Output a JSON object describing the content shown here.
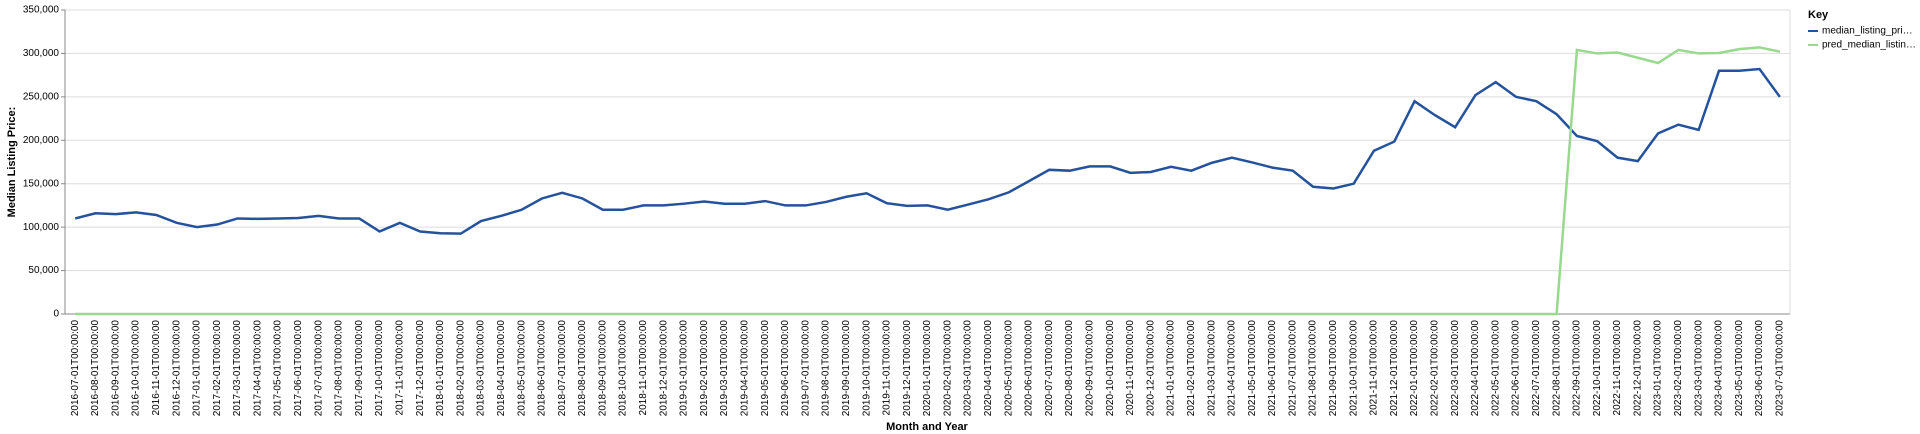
{
  "chart_data": {
    "type": "line",
    "x_label": "Month and Year",
    "y_label": "Median Listing Price:",
    "legend_title": "Key",
    "legend_position": "right",
    "grid": true,
    "categories": [
      "2016-07-01T00:00:00",
      "2016-08-01T00:00:00",
      "2016-09-01T00:00:00",
      "2016-10-01T00:00:00",
      "2016-11-01T00:00:00",
      "2016-12-01T00:00:00",
      "2017-01-01T00:00:00",
      "2017-02-01T00:00:00",
      "2017-03-01T00:00:00",
      "2017-04-01T00:00:00",
      "2017-05-01T00:00:00",
      "2017-06-01T00:00:00",
      "2017-07-01T00:00:00",
      "2017-08-01T00:00:00",
      "2017-09-01T00:00:00",
      "2017-10-01T00:00:00",
      "2017-11-01T00:00:00",
      "2017-12-01T00:00:00",
      "2018-01-01T00:00:00",
      "2018-02-01T00:00:00",
      "2018-03-01T00:00:00",
      "2018-04-01T00:00:00",
      "2018-05-01T00:00:00",
      "2018-06-01T00:00:00",
      "2018-07-01T00:00:00",
      "2018-08-01T00:00:00",
      "2018-09-01T00:00:00",
      "2018-10-01T00:00:00",
      "2018-11-01T00:00:00",
      "2018-12-01T00:00:00",
      "2019-01-01T00:00:00",
      "2019-02-01T00:00:00",
      "2019-03-01T00:00:00",
      "2019-04-01T00:00:00",
      "2019-05-01T00:00:00",
      "2019-06-01T00:00:00",
      "2019-07-01T00:00:00",
      "2019-08-01T00:00:00",
      "2019-09-01T00:00:00",
      "2019-10-01T00:00:00",
      "2019-11-01T00:00:00",
      "2019-12-01T00:00:00",
      "2020-01-01T00:00:00",
      "2020-02-01T00:00:00",
      "2020-03-01T00:00:00",
      "2020-04-01T00:00:00",
      "2020-05-01T00:00:00",
      "2020-06-01T00:00:00",
      "2020-07-01T00:00:00",
      "2020-08-01T00:00:00",
      "2020-09-01T00:00:00",
      "2020-10-01T00:00:00",
      "2020-11-01T00:00:00",
      "2020-12-01T00:00:00",
      "2021-01-01T00:00:00",
      "2021-02-01T00:00:00",
      "2021-03-01T00:00:00",
      "2021-04-01T00:00:00",
      "2021-05-01T00:00:00",
      "2021-06-01T00:00:00",
      "2021-07-01T00:00:00",
      "2021-08-01T00:00:00",
      "2021-09-01T00:00:00",
      "2021-10-01T00:00:00",
      "2021-11-01T00:00:00",
      "2021-12-01T00:00:00",
      "2022-01-01T00:00:00",
      "2022-02-01T00:00:00",
      "2022-03-01T00:00:00",
      "2022-04-01T00:00:00",
      "2022-05-01T00:00:00",
      "2022-06-01T00:00:00",
      "2022-07-01T00:00:00",
      "2022-08-01T00:00:00",
      "2022-09-01T00:00:00",
      "2022-10-01T00:00:00",
      "2022-11-01T00:00:00",
      "2022-12-01T00:00:00",
      "2023-01-01T00:00:00",
      "2023-02-01T00:00:00",
      "2023-03-01T00:00:00",
      "2023-04-01T00:00:00",
      "2023-05-01T00:00:00",
      "2023-06-01T00:00:00",
      "2023-07-01T00:00:00"
    ],
    "series": [
      {
        "name": "median_listing_pri…",
        "color": "#24529d",
        "values": [
          110000,
          116000,
          115000,
          117000,
          114000,
          105000,
          100000,
          103000,
          110000,
          109500,
          110000,
          110500,
          113000,
          110000,
          110000,
          95000,
          105000,
          95000,
          93000,
          92500,
          107000,
          113000,
          120000,
          133000,
          139500,
          133000,
          120000,
          120000,
          125000,
          125000,
          127000,
          129500,
          127000,
          127000,
          130000,
          125000,
          125000,
          129000,
          135000,
          139000,
          127500,
          124500,
          125000,
          120000,
          126000,
          132000,
          140000,
          153000,
          166000,
          165000,
          170000,
          169900,
          162500,
          163500,
          169500,
          165000,
          174000,
          180000,
          174500,
          168500,
          165000,
          146500,
          144500,
          150000,
          188000,
          198500,
          245000,
          229000,
          215000,
          252000,
          267000,
          250000,
          245000,
          230000,
          205000,
          199000,
          180000,
          176000,
          208000,
          218000,
          212000,
          280000,
          280000,
          282000,
          250000
        ]
      },
      {
        "name": "pred_median_listin…",
        "color": "#98d98e",
        "values": [
          0,
          0,
          0,
          0,
          0,
          0,
          0,
          0,
          0,
          0,
          0,
          0,
          0,
          0,
          0,
          0,
          0,
          0,
          0,
          0,
          0,
          0,
          0,
          0,
          0,
          0,
          0,
          0,
          0,
          0,
          0,
          0,
          0,
          0,
          0,
          0,
          0,
          0,
          0,
          0,
          0,
          0,
          0,
          0,
          0,
          0,
          0,
          0,
          0,
          0,
          0,
          0,
          0,
          0,
          0,
          0,
          0,
          0,
          0,
          0,
          0,
          0,
          0,
          0,
          0,
          0,
          0,
          0,
          0,
          0,
          0,
          0,
          0,
          0,
          304000,
          300000,
          301000,
          295000,
          289000,
          304000,
          300000,
          300500,
          305000,
          307000,
          302000
        ]
      }
    ],
    "ylim": [
      0,
      350000
    ],
    "yticks": [
      0,
      {
        "value": 50000,
        "label": "50,000"
      },
      {
        "value": 100000,
        "label": "100,000"
      },
      {
        "value": 150000,
        "label": "150,000"
      },
      {
        "value": 200000,
        "label": "200,000"
      },
      {
        "value": 250000,
        "label": "250,000"
      },
      {
        "value": 300000,
        "label": "300,000"
      },
      {
        "value": 350000,
        "label": "350,000"
      }
    ]
  }
}
